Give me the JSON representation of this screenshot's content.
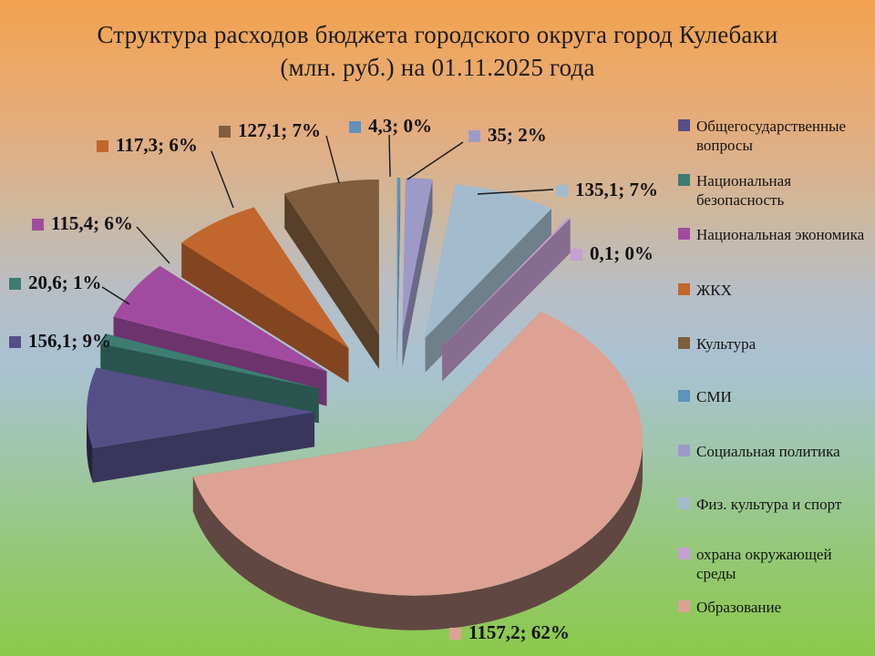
{
  "title": {
    "line1": "Структура расходов бюджета городского округа город Кулебаки",
    "line2": "(млн. руб.) на 01.11.2025 года"
  },
  "chart_data": {
    "type": "pie",
    "projection": "3d-exploded",
    "title": "Структура расходов бюджета городского округа город Кулебаки (млн. руб.) на 01.11.2025 года",
    "units": "млн. руб.",
    "date": "01.11.2025",
    "start_angle_deg": 256.6,
    "direction": "clockwise",
    "legend_position": "right",
    "labels_format": "value; percent",
    "slices": [
      {
        "category": "Общегосударственные вопросы",
        "value": 156.1,
        "pct": 9,
        "label": "156,1; 9%",
        "color": "#544f86"
      },
      {
        "category": "Национальная безопасность",
        "value": 20.6,
        "pct": 1,
        "label": "20,6; 1%",
        "color": "#3e7c72"
      },
      {
        "category": "Национальная экономика",
        "value": 115.4,
        "pct": 6,
        "label": "115,4; 6%",
        "color": "#a04ba0"
      },
      {
        "category": "ЖКХ",
        "value": 117.3,
        "pct": 6,
        "label": "117,3; 6%",
        "color": "#c1662d"
      },
      {
        "category": "Культура",
        "value": 127.1,
        "pct": 7,
        "label": "127,1; 7%",
        "color": "#805d3d"
      },
      {
        "category": "СМИ",
        "value": 4.3,
        "pct": 0,
        "label": "4,3; 0%",
        "color": "#5f92bc"
      },
      {
        "category": "Социальная политика",
        "value": 35,
        "pct": 2,
        "label": "35; 2%",
        "color": "#9e9ac8"
      },
      {
        "category": "Физ. культура и спорт",
        "value": 135.1,
        "pct": 7,
        "label": "135,1; 7%",
        "color": "#a3bccd"
      },
      {
        "category": "охрана окружающей среды",
        "value": 0.1,
        "pct": 0,
        "label": "0,1; 0%",
        "color": "#c5a0d2"
      },
      {
        "category": "Образование",
        "value": 1157.2,
        "pct": 62,
        "label": "1157,2; 62%",
        "color": "#dda294"
      }
    ]
  }
}
